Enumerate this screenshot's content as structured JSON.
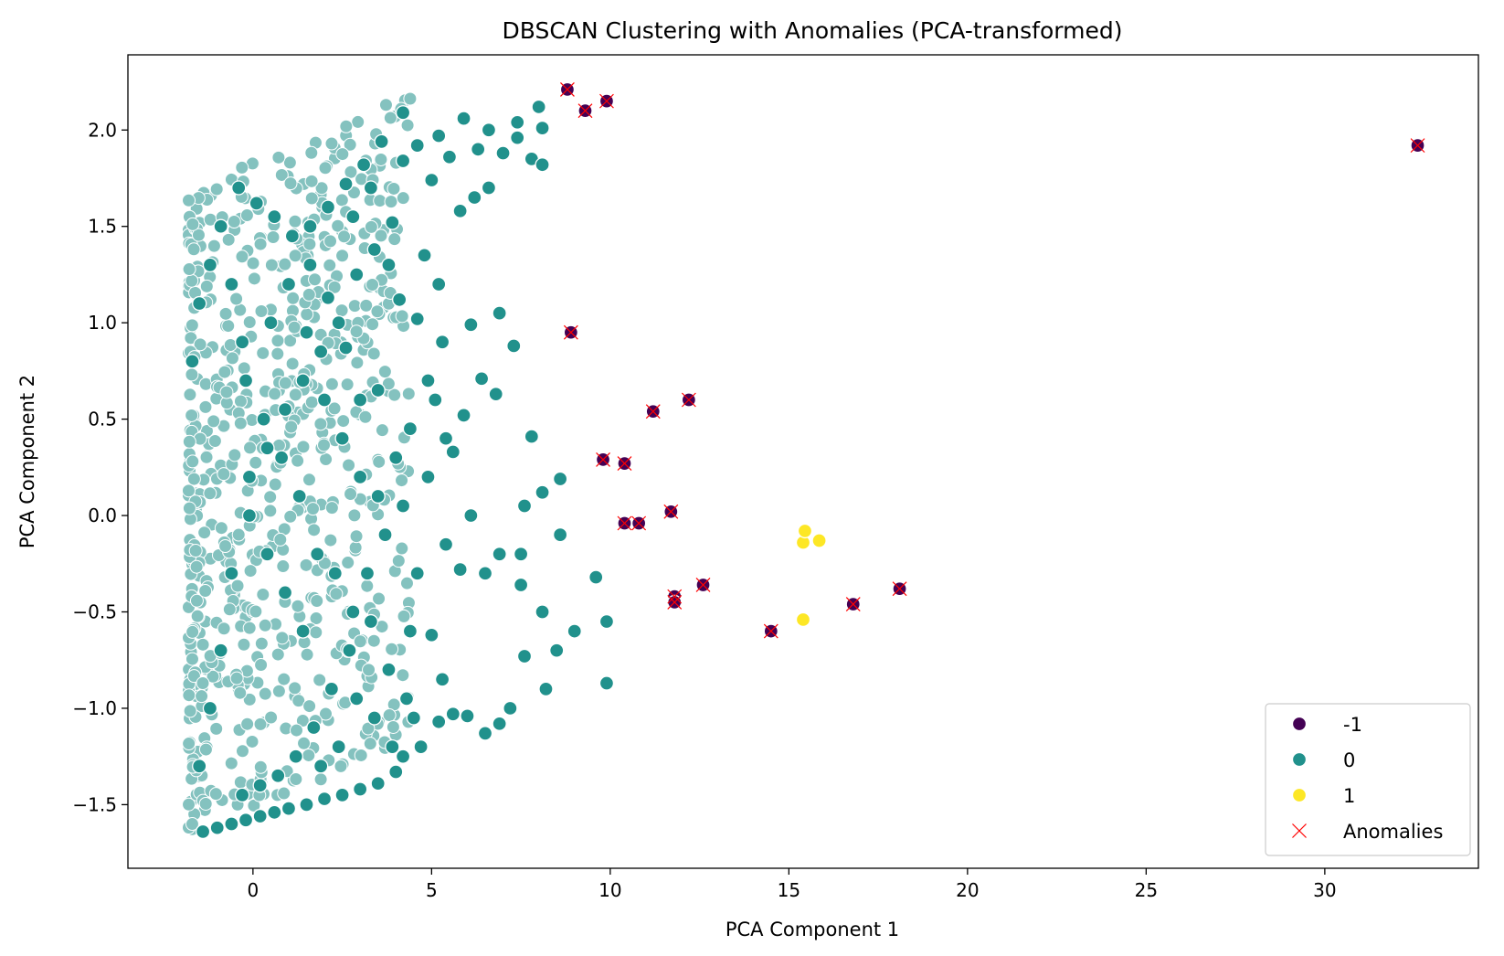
{
  "chart_data": {
    "type": "scatter",
    "title": "DBSCAN Clustering with Anomalies (PCA-transformed)",
    "xlabel": "PCA Component 1",
    "ylabel": "PCA Component 2",
    "xlim": [
      -3.5,
      34.3
    ],
    "ylim": [
      -1.83,
      2.39
    ],
    "x_ticks": [
      0,
      5,
      10,
      15,
      20,
      25,
      30
    ],
    "x_tick_labels": [
      "0",
      "5",
      "10",
      "15",
      "20",
      "25",
      "30"
    ],
    "y_ticks": [
      -1.5,
      -1.0,
      -0.5,
      0.0,
      0.5,
      1.0,
      1.5,
      2.0
    ],
    "y_tick_labels": [
      "−1.5",
      "−1.0",
      "−0.5",
      "0.0",
      "0.5",
      "1.0",
      "1.5",
      "2.0"
    ],
    "grid": false,
    "legend_position": "lower-right",
    "legend": [
      {
        "label": "-1",
        "marker": "circle",
        "color": "#440154"
      },
      {
        "label": "0",
        "marker": "circle",
        "color": "#21918c"
      },
      {
        "label": "1",
        "marker": "circle",
        "color": "#fde725"
      },
      {
        "label": "Anomalies",
        "marker": "x",
        "color": "#ff0000"
      }
    ],
    "series": [
      {
        "name": "-1",
        "color": "#440154",
        "points": [
          [
            8.8,
            2.21
          ],
          [
            9.3,
            2.1
          ],
          [
            9.9,
            2.15
          ],
          [
            32.6,
            1.92
          ],
          [
            8.9,
            0.95
          ],
          [
            11.2,
            0.54
          ],
          [
            12.2,
            0.6
          ],
          [
            9.8,
            0.29
          ],
          [
            10.4,
            0.27
          ],
          [
            10.4,
            -0.04
          ],
          [
            10.8,
            -0.04
          ],
          [
            11.7,
            0.02
          ],
          [
            11.8,
            -0.42
          ],
          [
            11.8,
            -0.45
          ],
          [
            12.6,
            -0.36
          ],
          [
            14.5,
            -0.6
          ],
          [
            16.8,
            -0.46
          ],
          [
            18.1,
            -0.38
          ]
        ]
      },
      {
        "name": "0",
        "color": "#21918c",
        "points": [
          [
            -1.4,
            -1.64
          ],
          [
            -1.0,
            -1.62
          ],
          [
            -0.6,
            -1.6
          ],
          [
            -0.2,
            -1.58
          ],
          [
            0.2,
            -1.56
          ],
          [
            0.6,
            -1.54
          ],
          [
            1.0,
            -1.52
          ],
          [
            1.5,
            -1.5
          ],
          [
            2.0,
            -1.47
          ],
          [
            2.5,
            -1.45
          ],
          [
            3.0,
            -1.42
          ],
          [
            3.5,
            -1.39
          ],
          [
            4.0,
            -1.33
          ],
          [
            4.2,
            -1.25
          ],
          [
            4.7,
            -1.2
          ],
          [
            5.2,
            -1.07
          ],
          [
            5.6,
            -1.03
          ],
          [
            6.0,
            -1.04
          ],
          [
            6.5,
            -1.13
          ],
          [
            6.9,
            -1.08
          ],
          [
            7.2,
            -1.0
          ],
          [
            8.2,
            -0.9
          ],
          [
            9.9,
            -0.87
          ],
          [
            9.9,
            -0.55
          ],
          [
            9.0,
            -0.6
          ],
          [
            9.6,
            -0.32
          ],
          [
            8.1,
            -0.5
          ],
          [
            8.5,
            -0.7
          ],
          [
            7.6,
            -0.73
          ],
          [
            7.5,
            -0.36
          ],
          [
            7.5,
            -0.2
          ],
          [
            7.6,
            0.05
          ],
          [
            7.8,
            0.41
          ],
          [
            8.1,
            0.12
          ],
          [
            8.6,
            0.19
          ],
          [
            8.6,
            -0.1
          ],
          [
            6.9,
            -0.2
          ],
          [
            6.5,
            -0.3
          ],
          [
            5.8,
            -0.28
          ],
          [
            6.1,
            0.0
          ],
          [
            5.4,
            -0.15
          ],
          [
            4.6,
            -0.3
          ],
          [
            4.4,
            -0.6
          ],
          [
            5.0,
            -0.62
          ],
          [
            5.3,
            -0.85
          ],
          [
            4.3,
            -0.95
          ],
          [
            3.8,
            -0.8
          ],
          [
            3.3,
            -0.55
          ],
          [
            2.8,
            -0.5
          ],
          [
            2.3,
            -0.3
          ],
          [
            1.8,
            -0.2
          ],
          [
            1.3,
            0.1
          ],
          [
            0.8,
            0.3
          ],
          [
            0.3,
            0.5
          ],
          [
            -0.2,
            0.7
          ],
          [
            5.6,
            0.33
          ],
          [
            5.9,
            0.52
          ],
          [
            6.4,
            0.71
          ],
          [
            6.8,
            0.63
          ],
          [
            7.3,
            0.88
          ],
          [
            6.9,
            1.05
          ],
          [
            6.1,
            0.99
          ],
          [
            5.3,
            0.9
          ],
          [
            4.9,
            0.7
          ],
          [
            4.4,
            0.45
          ],
          [
            4.0,
            0.3
          ],
          [
            3.5,
            0.1
          ],
          [
            3.0,
            0.6
          ],
          [
            2.6,
            0.87
          ],
          [
            2.1,
            1.13
          ],
          [
            1.6,
            1.3
          ],
          [
            1.1,
            1.45
          ],
          [
            0.6,
            1.55
          ],
          [
            0.1,
            1.62
          ],
          [
            -0.4,
            1.7
          ],
          [
            5.8,
            1.58
          ],
          [
            6.2,
            1.65
          ],
          [
            6.6,
            1.7
          ],
          [
            7.0,
            1.88
          ],
          [
            7.4,
            1.96
          ],
          [
            7.8,
            1.85
          ],
          [
            8.1,
            1.82
          ],
          [
            8.1,
            2.01
          ],
          [
            8.0,
            2.12
          ],
          [
            7.4,
            2.04
          ],
          [
            6.6,
            2.0
          ],
          [
            5.9,
            2.06
          ],
          [
            5.2,
            1.97
          ],
          [
            4.6,
            1.92
          ],
          [
            4.2,
            2.09
          ],
          [
            3.6,
            1.94
          ],
          [
            3.1,
            1.82
          ],
          [
            2.6,
            1.72
          ],
          [
            2.1,
            1.6
          ],
          [
            1.6,
            1.5
          ],
          [
            4.2,
            1.84
          ],
          [
            5.0,
            1.74
          ],
          [
            5.5,
            1.86
          ],
          [
            6.3,
            1.9
          ],
          [
            4.8,
            1.35
          ],
          [
            5.2,
            1.2
          ],
          [
            3.9,
            1.52
          ],
          [
            3.4,
            1.38
          ],
          [
            2.9,
            1.25
          ],
          [
            2.4,
            1.0
          ],
          [
            1.9,
            0.85
          ],
          [
            1.4,
            0.7
          ],
          [
            0.9,
            0.55
          ],
          [
            0.4,
            0.35
          ],
          [
            -0.1,
            0.2
          ],
          [
            4.1,
            1.12
          ],
          [
            4.6,
            1.02
          ],
          [
            5.1,
            0.6
          ],
          [
            5.4,
            0.4
          ],
          [
            4.9,
            0.2
          ],
          [
            4.2,
            0.05
          ],
          [
            3.7,
            -0.1
          ],
          [
            3.2,
            -0.3
          ],
          [
            2.7,
            -0.7
          ],
          [
            2.2,
            -0.9
          ],
          [
            1.7,
            -1.1
          ],
          [
            1.2,
            -1.25
          ],
          [
            0.7,
            -1.35
          ],
          [
            0.2,
            -1.4
          ],
          [
            -0.3,
            -1.45
          ],
          [
            4.5,
            -1.05
          ],
          [
            3.9,
            -1.2
          ],
          [
            3.4,
            -1.05
          ],
          [
            2.9,
            -0.95
          ],
          [
            2.4,
            -1.2
          ],
          [
            1.9,
            -1.3
          ],
          [
            1.4,
            -0.6
          ],
          [
            0.9,
            -0.4
          ],
          [
            0.4,
            -0.2
          ],
          [
            -0.1,
            0.0
          ],
          [
            -0.6,
            -0.3
          ],
          [
            -0.9,
            -0.7
          ],
          [
            -1.2,
            -1.0
          ],
          [
            -1.5,
            -1.3
          ],
          [
            -1.7,
            0.8
          ],
          [
            -1.5,
            1.1
          ],
          [
            -1.2,
            1.3
          ],
          [
            -0.9,
            1.5
          ],
          [
            -0.6,
            1.2
          ],
          [
            -0.3,
            0.9
          ],
          [
            0.5,
            1.0
          ],
          [
            1.0,
            1.2
          ],
          [
            1.5,
            0.95
          ],
          [
            2.0,
            0.6
          ],
          [
            2.5,
            0.4
          ],
          [
            3.0,
            0.2
          ],
          [
            3.5,
            0.65
          ],
          [
            2.8,
            1.55
          ],
          [
            3.3,
            1.7
          ],
          [
            3.8,
            1.3
          ]
        ]
      },
      {
        "name": "1",
        "color": "#fde725",
        "points": [
          [
            15.4,
            -0.14
          ],
          [
            15.85,
            -0.13
          ],
          [
            15.4,
            -0.54
          ],
          [
            15.45,
            -0.08
          ]
        ]
      }
    ],
    "anomalies": {
      "name": "Anomalies",
      "color": "#ff0000",
      "marker": "x",
      "points": [
        [
          8.8,
          2.21
        ],
        [
          9.3,
          2.1
        ],
        [
          9.9,
          2.15
        ],
        [
          32.6,
          1.92
        ],
        [
          8.9,
          0.95
        ],
        [
          11.2,
          0.54
        ],
        [
          12.2,
          0.6
        ],
        [
          9.8,
          0.29
        ],
        [
          10.4,
          0.27
        ],
        [
          10.4,
          -0.04
        ],
        [
          10.8,
          -0.04
        ],
        [
          11.7,
          0.02
        ],
        [
          11.8,
          -0.42
        ],
        [
          11.8,
          -0.45
        ],
        [
          12.6,
          -0.36
        ],
        [
          14.5,
          -0.6
        ],
        [
          16.8,
          -0.46
        ],
        [
          18.1,
          -0.38
        ]
      ]
    }
  }
}
